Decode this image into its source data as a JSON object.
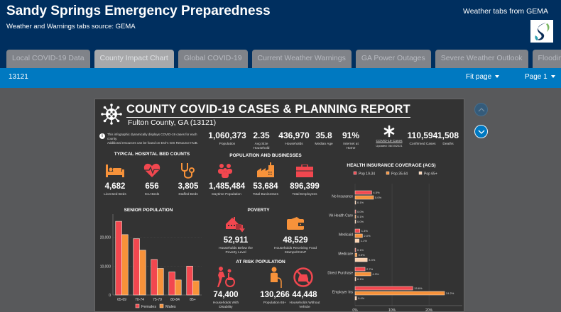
{
  "header": {
    "title": "Sandy Springs Emergency Preparedness",
    "subtitle": "Weather and Warnings tabs source: GEMA",
    "right_note": "Weather tabs from GEMA",
    "logo_icon": "city-logo-icon"
  },
  "tabs": [
    {
      "label": "Local COVID-19 Data",
      "active": false
    },
    {
      "label": "County Impact Chart",
      "active": true
    },
    {
      "label": "Global COVID-19",
      "active": false
    },
    {
      "label": "Current Weather Warnings",
      "active": false
    },
    {
      "label": "GA Power Outages",
      "active": false
    },
    {
      "label": "Severe Weather Outlook",
      "active": false
    },
    {
      "label": "Flooding",
      "active": false
    },
    {
      "label": "☰",
      "active": false,
      "icon": "list-icon"
    }
  ],
  "toolbar": {
    "feature_id": "13121",
    "fit_label": "Fit page",
    "page_label": "Page 1"
  },
  "report": {
    "title": "COUNTY COVID-19 CASES & PLANNING REPORT",
    "subtitle": "Fulton County, GA (13121)",
    "info_line1": "This infographic dynamically displays COVID-19 cases for each county.",
    "info_line2": "Additional resources can be found on Esri's GIS Resource HUB.",
    "top_stats": [
      {
        "value": "1,060,373",
        "label": "Population"
      },
      {
        "value": "2.35",
        "label": "Avg Size Household"
      },
      {
        "value": "436,970",
        "label": "Households"
      },
      {
        "value": "35.8",
        "label": "Median Age"
      },
      {
        "value": "91%",
        "label": "Internet at Home"
      }
    ],
    "covid": {
      "label": "COVID-19 Cases",
      "updated": "Updated: 08/19/2021",
      "confirmed_value": "110,594",
      "confirmed_label": "Confirmed Cases",
      "deaths_value": "1,508",
      "deaths_label": "Deaths"
    },
    "hospital": {
      "title": "TYPICAL HOSPITAL BED COUNTS",
      "items": [
        {
          "value": "4,682",
          "label": "Licensed Beds",
          "icon": "bed-icon"
        },
        {
          "value": "656",
          "label": "ICU Beds",
          "icon": "heartbeat-icon"
        },
        {
          "value": "3,805",
          "label": "Staffed Beds",
          "icon": "stethoscope-icon"
        }
      ]
    },
    "population_business": {
      "title": "POPULATION AND BUSINESSES",
      "items": [
        {
          "value": "1,485,484",
          "label": "Daytime Population",
          "icon": "people-icon"
        },
        {
          "value": "53,684",
          "label": "Total Businesses",
          "icon": "factory-icon"
        },
        {
          "value": "896,399",
          "label": "Total Employees",
          "icon": "briefcase-icon"
        }
      ]
    },
    "poverty": {
      "title": "POVERTY",
      "items": [
        {
          "value": "52,911",
          "label": "Households Below the Poverty Level",
          "icon": "house-down-icon"
        },
        {
          "value": "48,529",
          "label": "Households Receiving Food Stamps/SNAP",
          "icon": "wallet-icon"
        }
      ]
    },
    "at_risk": {
      "title": "AT RISK POPULATION",
      "items": [
        {
          "value": "74,400",
          "label": "Households With Disability",
          "icon": "wheelchair-icon"
        },
        {
          "value": "130,266",
          "label": "Population 65+",
          "icon": "elderly-icon"
        },
        {
          "value": "44,448",
          "label": "Households Without Vehicle",
          "icon": "no-car-icon"
        }
      ]
    }
  },
  "colors": {
    "red": "#f2474f",
    "orange": "#f7923a",
    "peach": "#fbd2b0",
    "report_bg": "#333333",
    "header_bg": "#002f5f",
    "toolbar_bg": "#0079c1"
  },
  "chart_data": [
    {
      "type": "bar",
      "title": "SENIOR POPULATION",
      "categories": [
        "65-69",
        "70-74",
        "75-79",
        "80-84",
        "85+"
      ],
      "series": [
        {
          "name": "Females",
          "values": [
            25500,
            19500,
            12300,
            8000,
            10000
          ]
        },
        {
          "name": "Males",
          "values": [
            20900,
            15500,
            9200,
            5200,
            4900
          ]
        }
      ],
      "yticks": [
        "0",
        "10,000",
        "20,000"
      ],
      "ylim": [
        0,
        27000
      ],
      "grid": true,
      "legend": "bottom"
    },
    {
      "type": "bar",
      "orientation": "horizontal",
      "title": "HEALTH INSURANCE COVERAGE (ACS)",
      "categories": [
        "No Insurance",
        "VA Health Care",
        "Medicaid",
        "Medicare",
        "Direct Purchase",
        "Employer Ins"
      ],
      "series": [
        {
          "name": "Pop 19-34",
          "values": [
            4.5,
            0.0,
            1.3,
            0.1,
            2.7,
            15.6
          ]
        },
        {
          "name": "Pop 35-64",
          "values": [
            5.0,
            0.1,
            2.0,
            0.5,
            4.3,
            24.2
          ]
        },
        {
          "name": "Pop 65+",
          "values": [
            0.1,
            0.0,
            1.1,
            3.3,
            0.1,
            0.4
          ]
        }
      ],
      "xticks": [
        "0%",
        "10%",
        "20%"
      ],
      "xlim": [
        0,
        29
      ],
      "grid": true,
      "legend": "top"
    }
  ]
}
